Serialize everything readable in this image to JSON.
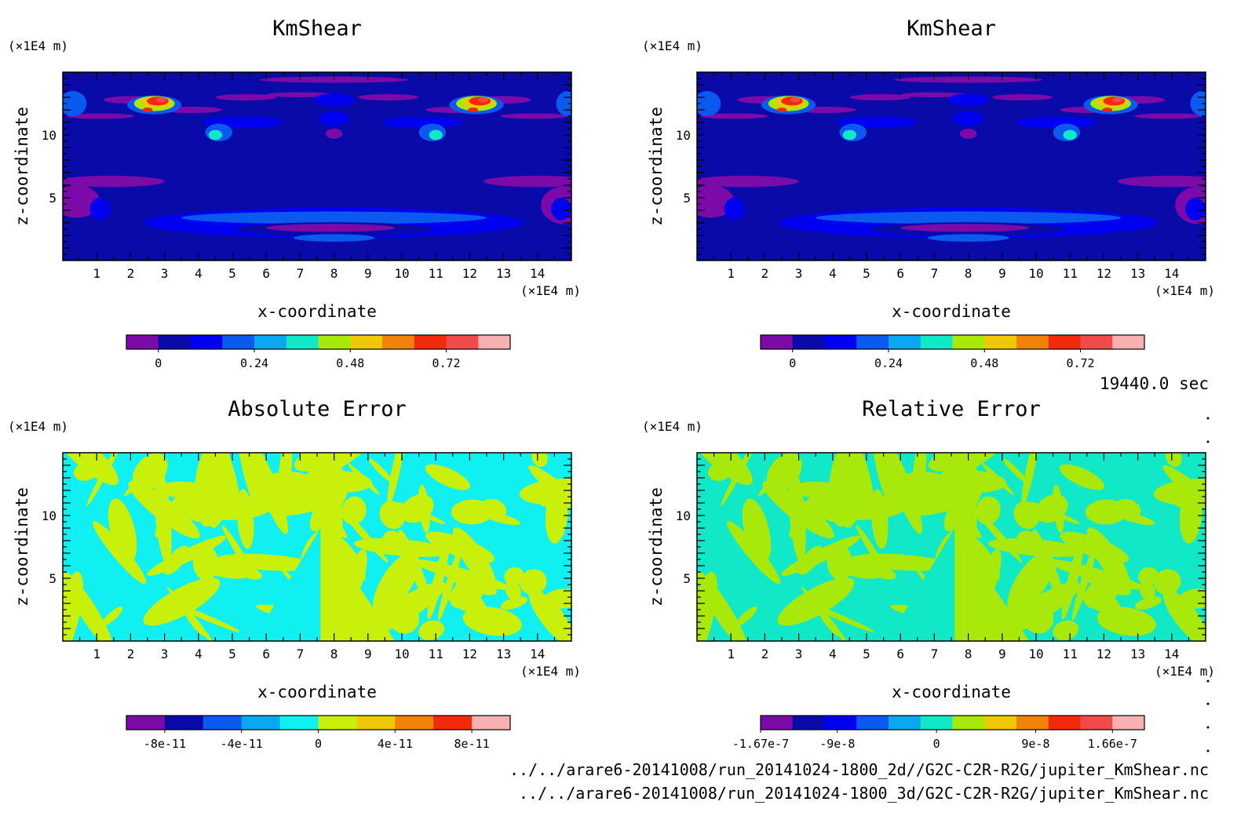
{
  "time_label": "19440.0 sec",
  "file_paths": [
    "../../arare6-20141008/run_20141024-1800_2d//G2C-C2R-R2G/jupiter_KmShear.nc",
    "../../arare6-20141008/run_20141024-1800_3d/G2C-C2R-R2G/jupiter_KmShear.nc"
  ],
  "chart_data": [
    {
      "type": "heatmap",
      "title": "KmShear",
      "xlabel": "x-coordinate",
      "ylabel": "z-coordinate",
      "x_unit": "(×1E4 m)",
      "y_unit": "(×1E4 m)",
      "xlim": [
        0,
        15
      ],
      "ylim": [
        0,
        15
      ],
      "x_ticks": [
        "1",
        "2",
        "3",
        "4",
        "5",
        "6",
        "7",
        "8",
        "9",
        "10",
        "11",
        "12",
        "13",
        "14"
      ],
      "y_ticks": [
        "5",
        "10"
      ],
      "colorbar": {
        "colors": [
          "#7b0aa8",
          "#0a0aa8",
          "#0000f0",
          "#0a5af0",
          "#0aa8f0",
          "#10e8c8",
          "#a8e80a",
          "#f0c80a",
          "#f0820a",
          "#f02a0a",
          "#f04a4a",
          "#f8b0b0"
        ],
        "tick_labels": [
          "0",
          "0.24",
          "0.48",
          "0.72"
        ],
        "tick_positions": [
          1,
          4,
          7,
          10
        ]
      },
      "field": "kmshear"
    },
    {
      "type": "heatmap",
      "title": "KmShear",
      "xlabel": "x-coordinate",
      "ylabel": "z-coordinate",
      "x_unit": "(×1E4 m)",
      "y_unit": "(×1E4 m)",
      "xlim": [
        0,
        15
      ],
      "ylim": [
        0,
        15
      ],
      "x_ticks": [
        "1",
        "2",
        "3",
        "4",
        "5",
        "6",
        "7",
        "8",
        "9",
        "10",
        "11",
        "12",
        "13",
        "14"
      ],
      "y_ticks": [
        "5",
        "10"
      ],
      "colorbar": {
        "colors": [
          "#7b0aa8",
          "#0a0aa8",
          "#0000f0",
          "#0a5af0",
          "#0aa8f0",
          "#10e8c8",
          "#a8e80a",
          "#f0c80a",
          "#f0820a",
          "#f02a0a",
          "#f04a4a",
          "#f8b0b0"
        ],
        "tick_labels": [
          "0",
          "0.24",
          "0.48",
          "0.72"
        ],
        "tick_positions": [
          1,
          4,
          7,
          10
        ]
      },
      "field": "kmshear"
    },
    {
      "type": "heatmap",
      "title": "Absolute Error",
      "xlabel": "x-coordinate",
      "ylabel": "z-coordinate",
      "x_unit": "(×1E4 m)",
      "y_unit": "(×1E4 m)",
      "xlim": [
        0,
        15
      ],
      "ylim": [
        0,
        15
      ],
      "x_ticks": [
        "1",
        "2",
        "3",
        "4",
        "5",
        "6",
        "7",
        "8",
        "9",
        "10",
        "11",
        "12",
        "13",
        "14"
      ],
      "y_ticks": [
        "5",
        "10"
      ],
      "colorbar": {
        "colors": [
          "#7b0aa8",
          "#0a0aa8",
          "#0a5af0",
          "#0aa8f0",
          "#10f0f0",
          "#c8f00a",
          "#f0c80a",
          "#f0820a",
          "#f02a0a",
          "#f8b0b0"
        ],
        "tick_labels": [
          "-8e-11",
          "-4e-11",
          "0",
          "4e-11",
          "8e-11"
        ],
        "tick_positions": [
          1,
          3,
          5,
          7,
          9
        ]
      },
      "field": "abserr",
      "colors_present": [
        "#10f0f0",
        "#c8f00a"
      ]
    },
    {
      "type": "heatmap",
      "title": "Relative Error",
      "xlabel": "x-coordinate",
      "ylabel": "z-coordinate",
      "x_unit": "(×1E4 m)",
      "y_unit": "(×1E4 m)",
      "xlim": [
        0,
        15
      ],
      "ylim": [
        0,
        15
      ],
      "x_ticks": [
        "1",
        "2",
        "3",
        "4",
        "5",
        "6",
        "7",
        "8",
        "9",
        "10",
        "11",
        "12",
        "13",
        "14"
      ],
      "y_ticks": [
        "5",
        "10"
      ],
      "colorbar": {
        "colors": [
          "#7b0aa8",
          "#0a0aa8",
          "#0000f0",
          "#0a5af0",
          "#0aa8f0",
          "#10e8c8",
          "#a8e80a",
          "#f0c80a",
          "#f0820a",
          "#f02a0a",
          "#f04a4a",
          "#f8b0b0"
        ],
        "tick_labels": [
          "-1.67e-7",
          "-9e-8",
          "0",
          "9e-8",
          "1.66e-7"
        ],
        "tick_positions": [
          0,
          2.4,
          5.5,
          8.6,
          11
        ]
      },
      "field": "relerr",
      "colors_present": [
        "#10e8c8",
        "#a8e80a"
      ]
    }
  ]
}
